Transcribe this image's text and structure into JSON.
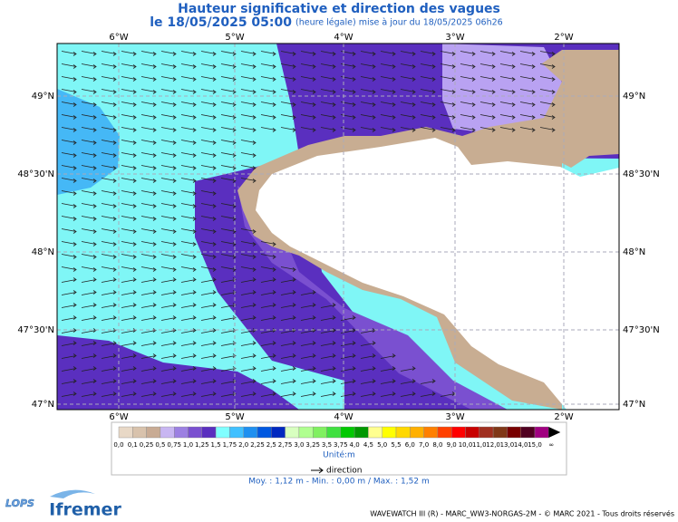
{
  "header": {
    "title": "Hauteur significative et direction des vagues",
    "subtitle_date": "le 18/05/2025 05:00",
    "subtitle_note": "(heure légale) mise à jour du 18/05/2025 06h26"
  },
  "map": {
    "lon_labels": [
      "6°W",
      "5°W",
      "4°W",
      "3°W",
      "2°W"
    ],
    "lat_labels": [
      "49°N",
      "48°30'N",
      "48°N",
      "47°30'N",
      "47°N"
    ]
  },
  "legend": {
    "labels": [
      "0,0",
      "0,1",
      "0,25",
      "0,5",
      "0,75",
      "1,0",
      "1,25",
      "1,5",
      "1,75",
      "2,0",
      "2,25",
      "2,5",
      "2,75",
      "3,0",
      "3,25",
      "3,5",
      "3,75",
      "4,0",
      "4,5",
      "5,0",
      "5,5",
      "6,0",
      "7,0",
      "8,0",
      "9,0",
      "10,0",
      "11,0",
      "12,0",
      "13,0",
      "14,0",
      "15,0",
      "∞"
    ],
    "colors": [
      "#e8d8c6",
      "#d8c2ac",
      "#c8ab94",
      "#c8b6f2",
      "#9c80e2",
      "#7a50d0",
      "#5a2fbf",
      "#80ffff",
      "#40c0ff",
      "#1f90f0",
      "#0058e0",
      "#0028c0",
      "#d8ffc0",
      "#b0ff90",
      "#80f060",
      "#40e040",
      "#00c800",
      "#009800",
      "#ffff90",
      "#ffff00",
      "#ffd800",
      "#ffb000",
      "#ff8000",
      "#ff4000",
      "#ff0000",
      "#c80000",
      "#a03020",
      "#803818",
      "#780000",
      "#500020",
      "#a00080"
    ],
    "unit": "Unité:m",
    "direction": "direction",
    "stats": "Moy. : 1,12 m   -   Min. : 0,00 m / Max. : 1,52 m"
  },
  "footer": {
    "credit": "WAVEWATCH III (R) - MARC_WW3-NORGAS-2M - © MARC 2021 - Tous droits réservés",
    "logos": [
      "LOPS",
      "Ifremer"
    ]
  }
}
